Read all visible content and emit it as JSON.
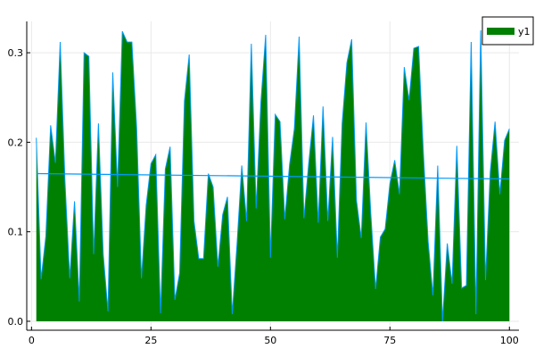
{
  "chart_data": {
    "type": "area",
    "x": [
      1,
      2,
      3,
      4,
      5,
      6,
      7,
      8,
      9,
      10,
      11,
      12,
      13,
      14,
      15,
      16,
      17,
      18,
      19,
      20,
      21,
      22,
      23,
      24,
      25,
      26,
      27,
      28,
      29,
      30,
      31,
      32,
      33,
      34,
      35,
      36,
      37,
      38,
      39,
      40,
      41,
      42,
      43,
      44,
      45,
      46,
      47,
      48,
      49,
      50,
      51,
      52,
      53,
      54,
      55,
      56,
      57,
      58,
      59,
      60,
      61,
      62,
      63,
      64,
      65,
      66,
      67,
      68,
      69,
      70,
      71,
      72,
      73,
      74,
      75,
      76,
      77,
      78,
      79,
      80,
      81,
      82,
      83,
      84,
      85,
      86,
      87,
      88,
      89,
      90,
      91,
      92,
      93,
      94,
      95,
      96,
      97,
      98,
      99,
      100
    ],
    "series": [
      {
        "name": "y1",
        "values": [
          0.205,
          0.047,
          0.095,
          0.219,
          0.177,
          0.312,
          0.156,
          0.048,
          0.134,
          0.022,
          0.3,
          0.296,
          0.075,
          0.221,
          0.075,
          0.011,
          0.278,
          0.15,
          0.324,
          0.312,
          0.312,
          0.216,
          0.048,
          0.13,
          0.176,
          0.186,
          0.009,
          0.17,
          0.195,
          0.024,
          0.054,
          0.246,
          0.298,
          0.112,
          0.07,
          0.07,
          0.165,
          0.15,
          0.061,
          0.119,
          0.139,
          0.008,
          0.086,
          0.174,
          0.112,
          0.31,
          0.126,
          0.245,
          0.32,
          0.071,
          0.231,
          0.223,
          0.114,
          0.175,
          0.215,
          0.318,
          0.115,
          0.176,
          0.23,
          0.11,
          0.24,
          0.112,
          0.206,
          0.071,
          0.221,
          0.289,
          0.315,
          0.135,
          0.093,
          0.222,
          0.12,
          0.036,
          0.094,
          0.103,
          0.154,
          0.18,
          0.142,
          0.284,
          0.247,
          0.305,
          0.307,
          0.188,
          0.089,
          0.029,
          0.174,
          0.0,
          0.087,
          0.042,
          0.196,
          0.037,
          0.04,
          0.312,
          0.008,
          0.325,
          0.046,
          0.167,
          0.223,
          0.142,
          0.202,
          0.215
        ],
        "color": "#008000"
      }
    ],
    "trend": {
      "start": 0.165,
      "end": 0.159,
      "color": "#009af9"
    },
    "line_color": "#009af9",
    "xlim": [
      -1,
      102
    ],
    "ylim": [
      -0.01,
      0.335
    ],
    "xticks": [
      0,
      25,
      50,
      75,
      100
    ],
    "xtick_labels": [
      "0",
      "25",
      "50",
      "75",
      "100"
    ],
    "yticks": [
      0.0,
      0.1,
      0.2,
      0.3
    ],
    "ytick_labels": [
      "0.0",
      "0.1",
      "0.2",
      "0.3"
    ],
    "grid": true,
    "legend_position": "top-right",
    "title": "",
    "xlabel": "",
    "ylabel": ""
  }
}
